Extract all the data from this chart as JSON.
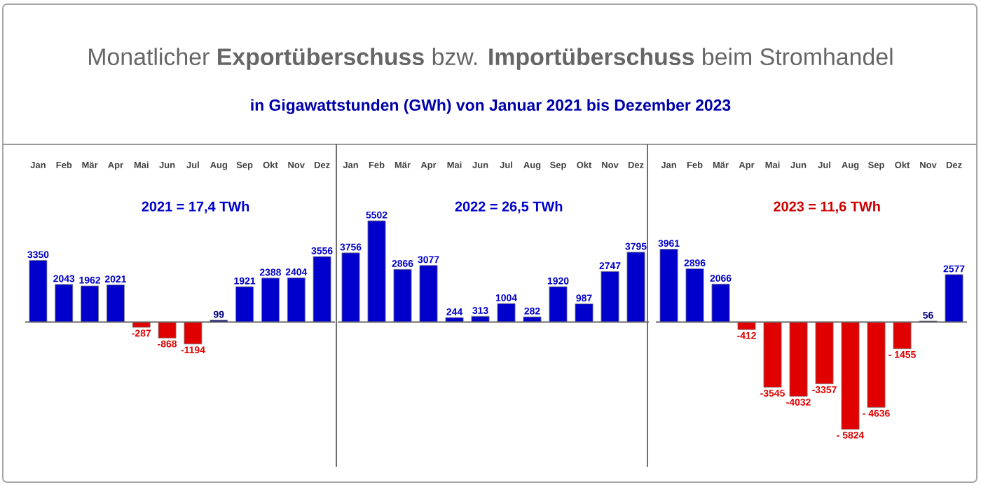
{
  "chart_data": [
    {
      "type": "bar",
      "title": "Monatlicher **Exportüberschuss** bzw. **Importüberschuss** beim Stromhandel",
      "subtitle": "in  Gigawattstunden (GWh) von Januar 2021 bis Dezember 2023",
      "categories": [
        "Jan",
        "Feb",
        "Mär",
        "Apr",
        "Mai",
        "Jun",
        "Jul",
        "Aug",
        "Sep",
        "Okt",
        "Nov",
        "Dez"
      ],
      "values": [
        3350,
        2043,
        1962,
        2021,
        -287,
        -868,
        -1194,
        99,
        1921,
        2388,
        2404,
        3556
      ],
      "colors": [
        "#0000cc",
        "#0000cc",
        "#0000cc",
        "#0000cc",
        "#e00000",
        "#e00000",
        "#e00000",
        "#000080",
        "#0000cc",
        "#0000cc",
        "#0000cc",
        "#0000cc"
      ],
      "value_labels": [
        "3350",
        "2043",
        "1962",
        "2021",
        "-287",
        "-868",
        "-1194",
        "99",
        "1921",
        "2388",
        "2404",
        "3556"
      ],
      "annotations": [
        "2021 = 17,4 TWh"
      ],
      "tick_labels": "x"
    },
    {
      "type": "bar",
      "categories": [
        "Jan",
        "Feb",
        "Mär",
        "Apr",
        "Mai",
        "Jun",
        "Jul",
        "Aug",
        "Sep",
        "Okt",
        "Nov",
        "Dez"
      ],
      "values": [
        3756,
        5502,
        2866,
        3077,
        244,
        313,
        1004,
        282,
        1920,
        987,
        2747,
        3795
      ],
      "colors": [
        "#0000cc",
        "#0000cc",
        "#0000cc",
        "#0000cc",
        "#0000cc",
        "#0000cc",
        "#0000cc",
        "#0000cc",
        "#0000cc",
        "#0000cc",
        "#0000cc",
        "#0000cc"
      ],
      "value_labels": [
        "3756",
        "5502",
        "2866",
        "3077",
        "244",
        "313",
        "1004",
        "282",
        "1920",
        "987",
        "2747",
        "3795"
      ],
      "annotations": [
        "2022 = 26,5 TWh"
      ],
      "tick_labels": "x"
    },
    {
      "type": "bar",
      "categories": [
        "Jan",
        "Feb",
        "Mär",
        "Apr",
        "Mai",
        "Jun",
        "Jul",
        "Aug",
        "Sep",
        "Okt",
        "Nov",
        "Dez"
      ],
      "values": [
        3961,
        2896,
        2066,
        -412,
        -3545,
        -4032,
        -3357,
        -5824,
        -4636,
        -1455,
        56,
        2577
      ],
      "colors": [
        "#0000cc",
        "#0000cc",
        "#0000cc",
        "#e00000",
        "#e00000",
        "#e00000",
        "#e00000",
        "#e00000",
        "#e00000",
        "#e00000",
        "#000080",
        "#0000cc"
      ],
      "value_labels": [
        "3961",
        "2896",
        "2066",
        "-412",
        "-3545",
        "-4032",
        "-3357",
        "- 5824",
        "- 4636",
        "- 1455",
        "56",
        "2577"
      ],
      "annotations": [
        "2023 = 11,6 TWh"
      ],
      "tick_labels": "x"
    }
  ]
}
